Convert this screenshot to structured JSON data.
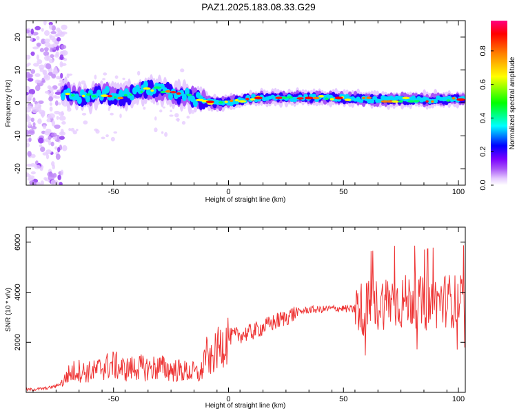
{
  "title": "PAZ1.2025.183.08.33.G29",
  "chart_data": [
    {
      "type": "heatmap",
      "xlabel": "Height of straight line (km)",
      "ylabel": "Frequency (Hz)",
      "xlim": [
        -88,
        103
      ],
      "ylim": [
        -25,
        25
      ],
      "x_ticks": [
        -50,
        0,
        50,
        100
      ],
      "y_ticks": [
        -20,
        -10,
        0,
        10,
        20
      ],
      "colorbar": {
        "label": "Normalized spectral amplitude",
        "range": [
          0,
          1
        ],
        "ticks": [
          "0.0",
          "0.2",
          "0.4",
          "0.6",
          "0.8"
        ],
        "colors": [
          "#ffffff",
          "#e6ccff",
          "#a855f7",
          "#7a00ff",
          "#0000ff",
          "#00ffff",
          "#00ff00",
          "#ffff00",
          "#ff8000",
          "#ff0000",
          "#ff0080"
        ]
      },
      "ridge": {
        "x": [
          -72,
          -66,
          -60,
          -55,
          -50,
          -45,
          -40,
          -35,
          -30,
          -25,
          -20,
          -15,
          -10,
          -5,
          0,
          10,
          20,
          30,
          40,
          50,
          60,
          70,
          80,
          90,
          100
        ],
        "frequency": [
          3,
          2,
          2,
          3,
          2,
          2,
          3,
          4.5,
          4,
          3,
          2.5,
          1.5,
          0.5,
          0,
          0,
          1.5,
          1.5,
          1.5,
          1.5,
          1.5,
          1,
          1,
          1,
          1,
          1
        ]
      }
    },
    {
      "type": "line",
      "xlabel": "Height of straight line (km)",
      "ylabel": "SNR (10 * v/v)",
      "xlim": [
        -88,
        103
      ],
      "ylim": [
        0,
        6600
      ],
      "x_ticks": [
        -50,
        0,
        50,
        100
      ],
      "y_ticks": [
        2000,
        4000,
        6000
      ],
      "line_color": "#ee3333",
      "series": [
        {
          "x": [
            -88,
            -80,
            -75,
            -72,
            -70,
            -66,
            -62,
            -58,
            -55,
            -50,
            -45,
            -40,
            -35,
            -30,
            -25,
            -20,
            -15,
            -12,
            -10,
            -8,
            -5,
            0,
            5,
            10,
            15,
            20,
            25,
            30,
            35,
            40,
            45,
            50,
            55,
            57,
            58,
            60,
            65,
            70,
            75,
            80,
            85,
            90,
            95,
            100,
            103
          ],
          "y": [
            100,
            150,
            250,
            400,
            700,
            900,
            800,
            850,
            1000,
            1100,
            900,
            1000,
            950,
            1000,
            900,
            850,
            800,
            700,
            1600,
            1200,
            1700,
            2200,
            2300,
            2400,
            2600,
            2800,
            3000,
            3200,
            3300,
            3300,
            3350,
            3350,
            3300,
            3500,
            3300,
            3400,
            3500,
            3700,
            3600,
            3700,
            3500,
            3600,
            3700,
            3600,
            3700
          ]
        }
      ]
    }
  ]
}
